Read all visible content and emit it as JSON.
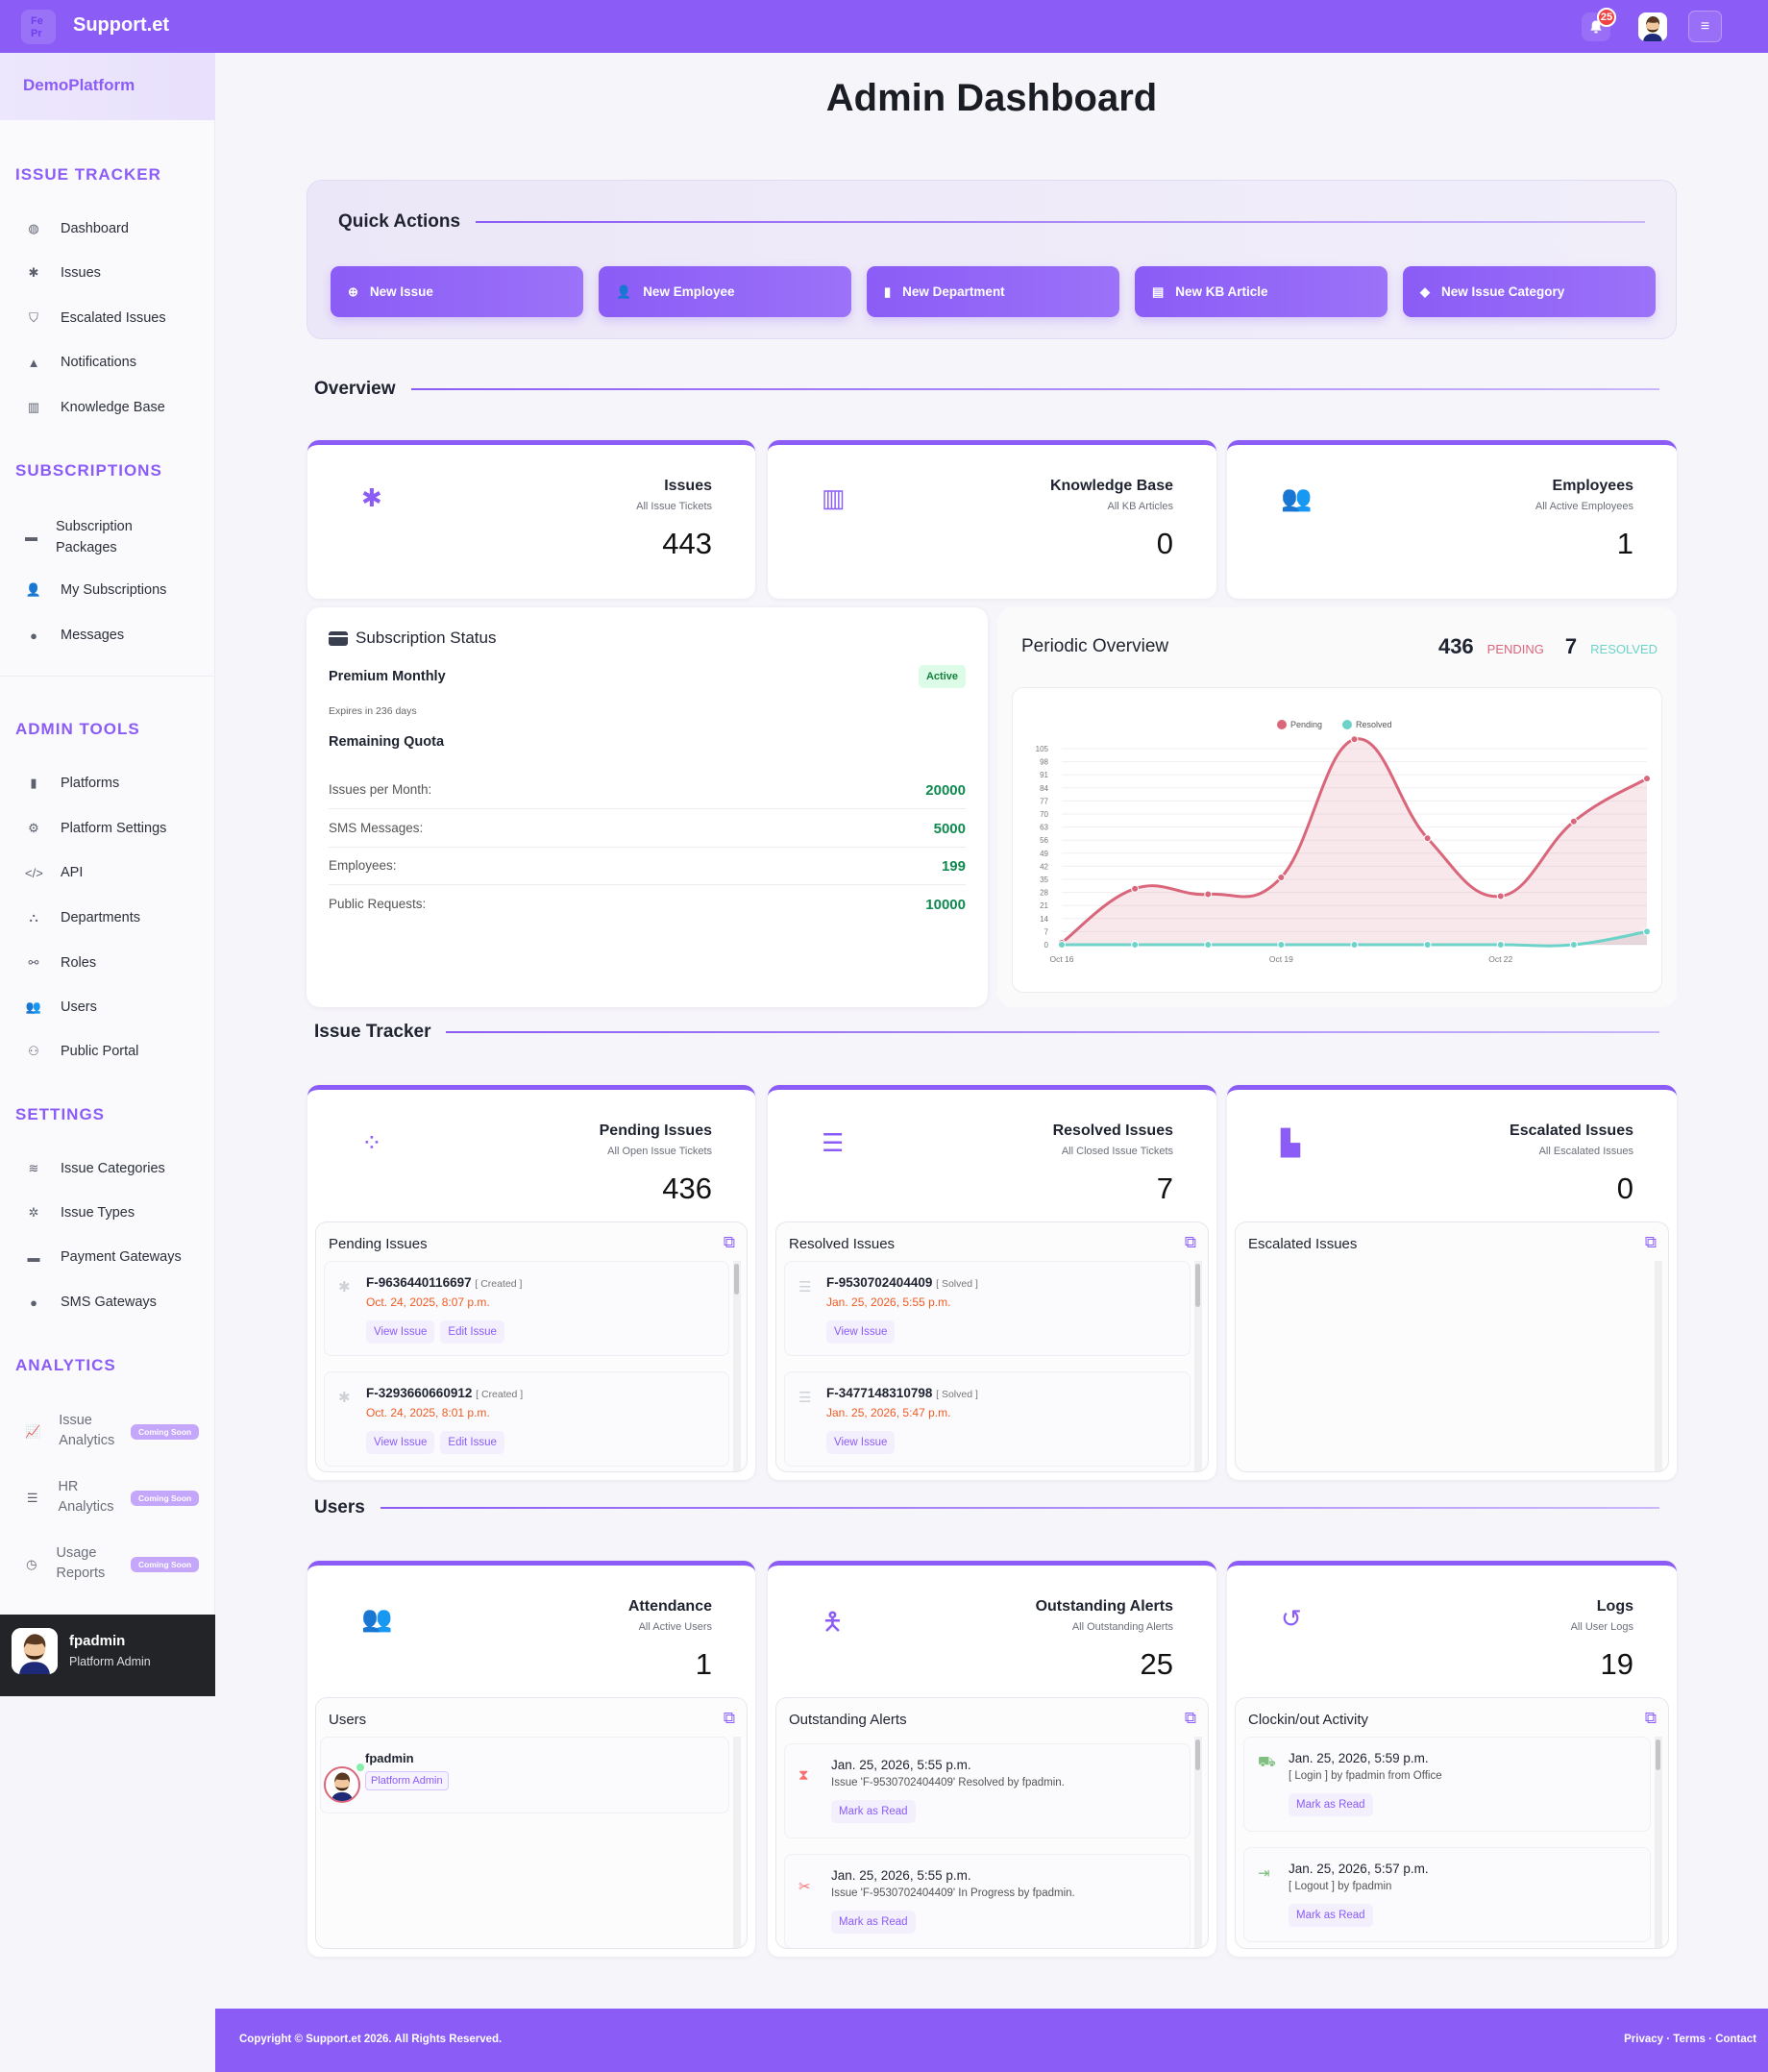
{
  "header": {
    "brand": "Support.et",
    "logo_text": "Fe Pr",
    "notification_count": "25",
    "menu_icon": "hamburger-icon"
  },
  "sidebar": {
    "platform": "DemoPlatform",
    "sections": [
      {
        "title": "ISSUE TRACKER",
        "items": [
          {
            "label": "Dashboard",
            "icon": "dashboard-icon"
          },
          {
            "label": "Issues",
            "icon": "bug-icon"
          },
          {
            "label": "Escalated Issues",
            "icon": "shield-icon"
          },
          {
            "label": "Notifications",
            "icon": "bell-icon"
          },
          {
            "label": "Knowledge Base",
            "icon": "book-icon"
          }
        ]
      },
      {
        "title": "SUBSCRIPTIONS",
        "items": [
          {
            "label": "Subscription Packages",
            "icon": "card-icon"
          },
          {
            "label": "My Subscriptions",
            "icon": "user-check-icon"
          },
          {
            "label": "Messages",
            "icon": "chat-icon"
          }
        ]
      },
      {
        "title": "ADMIN TOOLS",
        "items": [
          {
            "label": "Platforms",
            "icon": "building-icon"
          },
          {
            "label": "Platform Settings",
            "icon": "gear-icon"
          },
          {
            "label": "API",
            "icon": "code-icon"
          },
          {
            "label": "Departments",
            "icon": "sitemap-icon"
          },
          {
            "label": "Roles",
            "icon": "roles-icon"
          },
          {
            "label": "Users",
            "icon": "users-icon"
          },
          {
            "label": "Public Portal",
            "icon": "portal-icon"
          }
        ]
      },
      {
        "title": "SETTINGS",
        "items": [
          {
            "label": "Issue Categories",
            "icon": "layers-icon"
          },
          {
            "label": "Issue Types",
            "icon": "types-icon"
          },
          {
            "label": "Payment Gateways",
            "icon": "card-icon"
          },
          {
            "label": "SMS Gateways",
            "icon": "chat-icon"
          }
        ]
      },
      {
        "title": "ANALYTICS",
        "items": [
          {
            "label": "Issue Analytics",
            "badge": "Coming Soon"
          },
          {
            "label": "HR Analytics",
            "badge": "Coming Soon"
          },
          {
            "label": "Usage Reports",
            "badge": "Coming Soon"
          }
        ]
      }
    ],
    "user": {
      "name": "fpadmin",
      "role": "Platform Admin"
    }
  },
  "page": {
    "title": "Admin Dashboard"
  },
  "quick_actions": {
    "title": "Quick Actions",
    "buttons": [
      "New Issue",
      "New Employee",
      "New Department",
      "New KB Article",
      "New Issue Category"
    ]
  },
  "overview": {
    "title": "Overview",
    "cards": [
      {
        "title": "Issues",
        "subtitle": "All Issue Tickets",
        "value": "443"
      },
      {
        "title": "Knowledge Base",
        "subtitle": "All KB Articles",
        "value": "0"
      },
      {
        "title": "Employees",
        "subtitle": "All Active Employees",
        "value": "1"
      }
    ]
  },
  "subscription": {
    "title": "Subscription Status",
    "plan": "Premium Monthly",
    "status": "Active",
    "expires": "Expires in 236 days",
    "quota_title": "Remaining Quota",
    "quota": [
      {
        "label": "Issues per Month:",
        "value": "20000"
      },
      {
        "label": "SMS Messages:",
        "value": "5000"
      },
      {
        "label": "Employees:",
        "value": "199"
      },
      {
        "label": "Public Requests:",
        "value": "10000"
      }
    ]
  },
  "periodic": {
    "title": "Periodic Overview",
    "pending_count": "436",
    "pending_label": "PENDING",
    "resolved_count": "7",
    "resolved_label": "RESOLVED"
  },
  "chart_data": {
    "type": "line",
    "title": "Periodic Overview",
    "x": [
      "Oct 16",
      "Oct 17",
      "Oct 18",
      "Oct 19",
      "Oct 20",
      "Oct 21",
      "Oct 22",
      "Oct 23",
      "Oct 24"
    ],
    "x_tick_labels": [
      "Oct 16",
      "Oct 19",
      "Oct 22"
    ],
    "yticks": [
      0,
      7,
      14,
      21,
      28,
      35,
      42,
      49,
      56,
      63,
      70,
      77,
      84,
      91,
      98,
      105
    ],
    "ylim": [
      0,
      110
    ],
    "grid": true,
    "legend": "top-center",
    "series": [
      {
        "name": "Pending",
        "color": "#d9667a",
        "values": [
          1,
          30,
          27,
          36,
          110,
          57,
          26,
          66,
          89
        ]
      },
      {
        "name": "Resolved",
        "color": "#6dd3c9",
        "values": [
          0,
          0,
          0,
          0,
          0,
          0,
          0,
          0,
          7
        ]
      }
    ]
  },
  "issue_tracker": {
    "title": "Issue Tracker",
    "cards": [
      {
        "title": "Pending Issues",
        "subtitle": "All Open Issue Tickets",
        "value": "436",
        "panel": "Pending Issues",
        "items": [
          {
            "id": "F-9636440116697",
            "status": "[ Created ]",
            "date": "Oct. 24, 2025, 8:07 p.m.",
            "actions": [
              "View Issue",
              "Edit Issue"
            ]
          },
          {
            "id": "F-3293660660912",
            "status": "[ Created ]",
            "date": "Oct. 24, 2025, 8:01 p.m.",
            "actions": [
              "View Issue",
              "Edit Issue"
            ]
          }
        ]
      },
      {
        "title": "Resolved Issues",
        "subtitle": "All Closed Issue Tickets",
        "value": "7",
        "panel": "Resolved Issues",
        "items": [
          {
            "id": "F-9530702404409",
            "status": "[ Solved ]",
            "date": "Jan. 25, 2026, 5:55 p.m.",
            "actions": [
              "View Issue"
            ]
          },
          {
            "id": "F-3477148310798",
            "status": "[ Solved ]",
            "date": "Jan. 25, 2026, 5:47 p.m.",
            "actions": [
              "View Issue"
            ]
          }
        ]
      },
      {
        "title": "Escalated Issues",
        "subtitle": "All Escalated Issues",
        "value": "0",
        "panel": "Escalated Issues",
        "items": []
      }
    ]
  },
  "users": {
    "title": "Users",
    "cards": [
      {
        "title": "Attendance",
        "subtitle": "All Active Users",
        "value": "1",
        "panel": "Users",
        "user": {
          "name": "fpadmin",
          "role": "Platform Admin"
        }
      },
      {
        "title": "Outstanding Alerts",
        "subtitle": "All Outstanding Alerts",
        "value": "25",
        "panel": "Outstanding Alerts",
        "items": [
          {
            "date": "Jan. 25, 2026, 5:55 p.m.",
            "text": "Issue 'F-9530702404409' Resolved by fpadmin.",
            "action": "Mark as Read"
          },
          {
            "date": "Jan. 25, 2026, 5:55 p.m.",
            "text": "Issue 'F-9530702404409' In Progress by fpadmin.",
            "action": "Mark as Read"
          }
        ]
      },
      {
        "title": "Logs",
        "subtitle": "All User Logs",
        "value": "19",
        "panel": "Clockin/out Activity",
        "items": [
          {
            "date": "Jan. 25, 2026, 5:59 p.m.",
            "text": "[ Login ] by fpadmin from Office",
            "action": "Mark as Read"
          },
          {
            "date": "Jan. 25, 2026, 5:57 p.m.",
            "text": "[ Logout ] by fpadmin",
            "action": "Mark as Read"
          }
        ]
      }
    ]
  },
  "footer": {
    "copyright": "Copyright © Support.et 2026. All Rights Reserved.",
    "links": [
      "Privacy",
      "Terms",
      "Contact"
    ]
  }
}
